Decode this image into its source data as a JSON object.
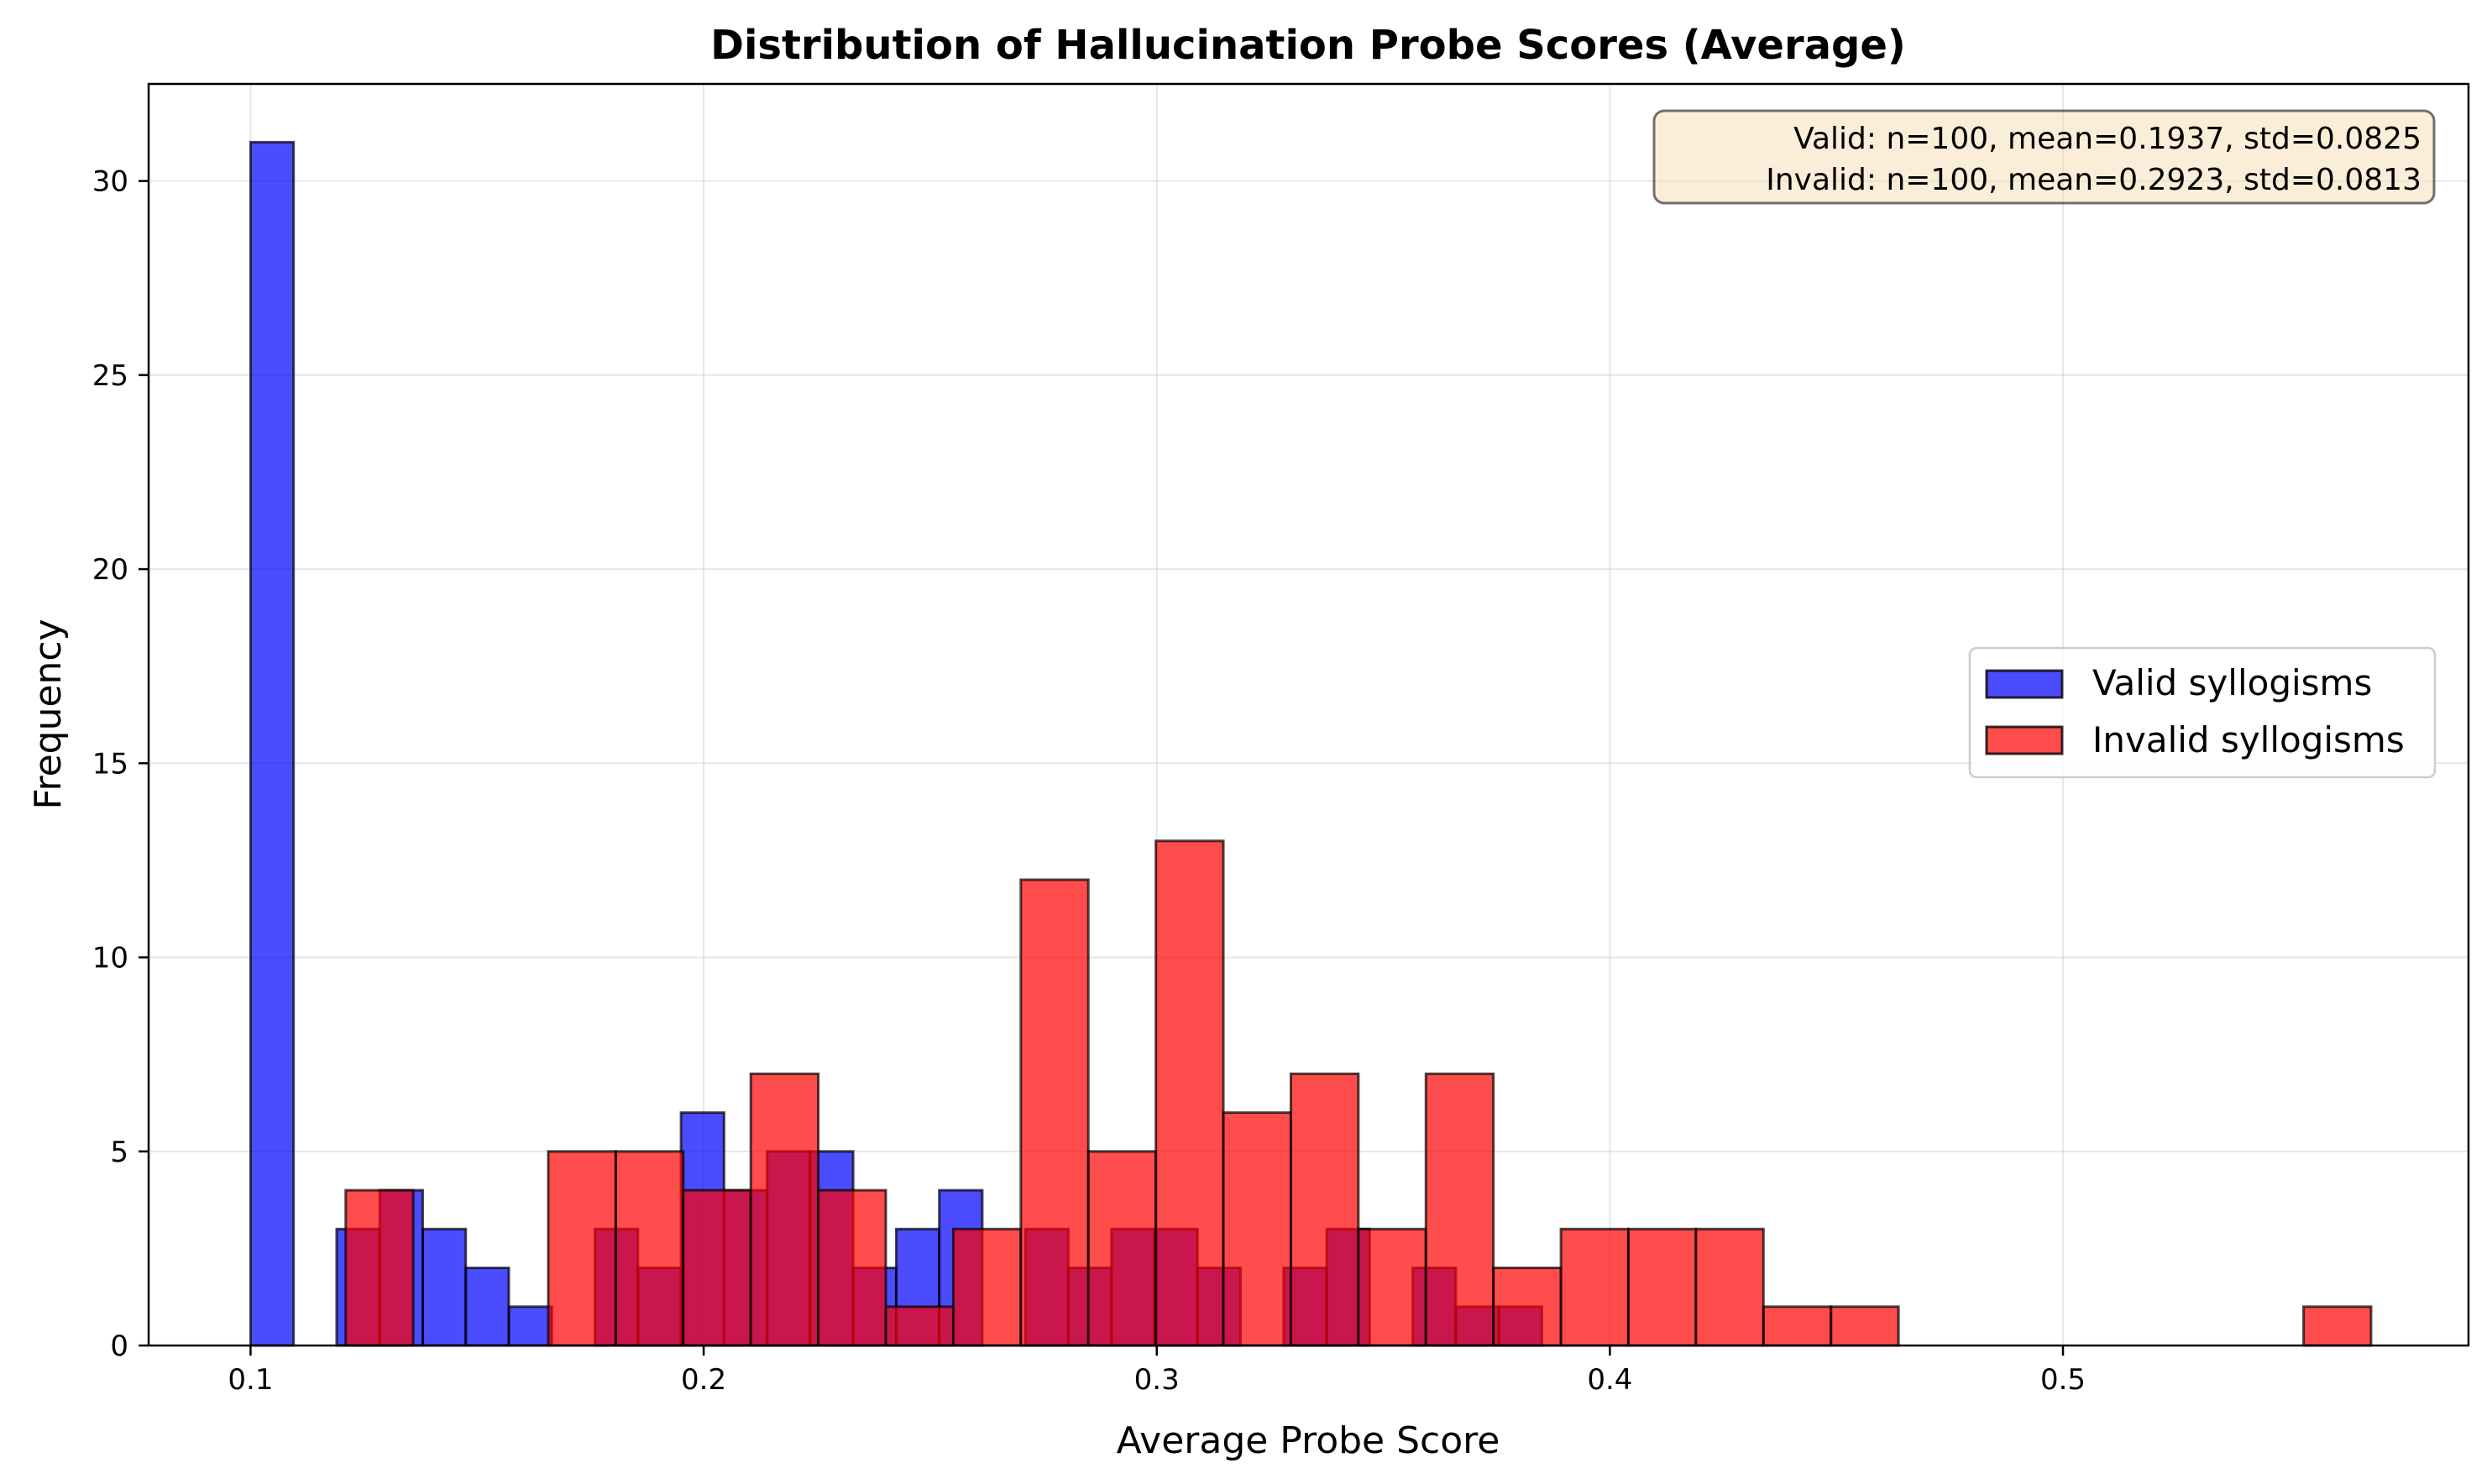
{
  "chart_data": {
    "type": "bar",
    "title": "Distribution of Hallucination Probe Scores (Average)",
    "xlabel": "Average Probe Score",
    "ylabel": "Frequency",
    "xlim": [
      0.0775,
      0.5895
    ],
    "ylim": [
      0,
      32.5
    ],
    "xticks": [
      0.1,
      0.2,
      0.3,
      0.4,
      0.5
    ],
    "yticks": [
      0,
      5,
      10,
      15,
      20,
      25,
      30
    ],
    "grid": true,
    "legend_position": "center-right",
    "stats_box": {
      "position": "top-right",
      "lines": [
        "Valid: n=100, mean=0.1937, std=0.0825",
        "Invalid: n=100, mean=0.2923, std=0.0813"
      ]
    },
    "series": [
      {
        "name": "Valid syllogisms",
        "color": "#0000ff",
        "opacity": 0.7,
        "bin_width": 0.0095,
        "bins": [
          {
            "x0": 0.1,
            "count": 31
          },
          {
            "x0": 0.119,
            "count": 3
          },
          {
            "x0": 0.1285,
            "count": 4
          },
          {
            "x0": 0.138,
            "count": 3
          },
          {
            "x0": 0.1475,
            "count": 2
          },
          {
            "x0": 0.157,
            "count": 1
          },
          {
            "x0": 0.176,
            "count": 3
          },
          {
            "x0": 0.1855,
            "count": 2
          },
          {
            "x0": 0.195,
            "count": 6
          },
          {
            "x0": 0.2045,
            "count": 4
          },
          {
            "x0": 0.214,
            "count": 5
          },
          {
            "x0": 0.2235,
            "count": 5
          },
          {
            "x0": 0.233,
            "count": 2
          },
          {
            "x0": 0.2425,
            "count": 3
          },
          {
            "x0": 0.252,
            "count": 4
          },
          {
            "x0": 0.271,
            "count": 3
          },
          {
            "x0": 0.2805,
            "count": 2
          },
          {
            "x0": 0.29,
            "count": 3
          },
          {
            "x0": 0.2995,
            "count": 3
          },
          {
            "x0": 0.309,
            "count": 2
          },
          {
            "x0": 0.328,
            "count": 2
          },
          {
            "x0": 0.3375,
            "count": 3
          },
          {
            "x0": 0.3565,
            "count": 2
          },
          {
            "x0": 0.366,
            "count": 1
          },
          {
            "x0": 0.3755,
            "count": 1
          }
        ]
      },
      {
        "name": "Invalid syllogisms",
        "color": "#ff0000",
        "opacity": 0.7,
        "bin_width": 0.0149,
        "bins": [
          {
            "x0": 0.121,
            "count": 4
          },
          {
            "x0": 0.1657,
            "count": 5
          },
          {
            "x0": 0.1806,
            "count": 5
          },
          {
            "x0": 0.1955,
            "count": 4
          },
          {
            "x0": 0.2104,
            "count": 7
          },
          {
            "x0": 0.2253,
            "count": 4
          },
          {
            "x0": 0.2402,
            "count": 1
          },
          {
            "x0": 0.2551,
            "count": 3
          },
          {
            "x0": 0.27,
            "count": 12
          },
          {
            "x0": 0.2849,
            "count": 5
          },
          {
            "x0": 0.2998,
            "count": 13
          },
          {
            "x0": 0.3147,
            "count": 6
          },
          {
            "x0": 0.3296,
            "count": 7
          },
          {
            "x0": 0.3445,
            "count": 3
          },
          {
            "x0": 0.3594,
            "count": 7
          },
          {
            "x0": 0.3743,
            "count": 2
          },
          {
            "x0": 0.3892,
            "count": 3
          },
          {
            "x0": 0.4041,
            "count": 3
          },
          {
            "x0": 0.419,
            "count": 3
          },
          {
            "x0": 0.4339,
            "count": 1
          },
          {
            "x0": 0.4488,
            "count": 1
          },
          {
            "x0": 0.5531,
            "count": 1
          }
        ]
      }
    ]
  }
}
